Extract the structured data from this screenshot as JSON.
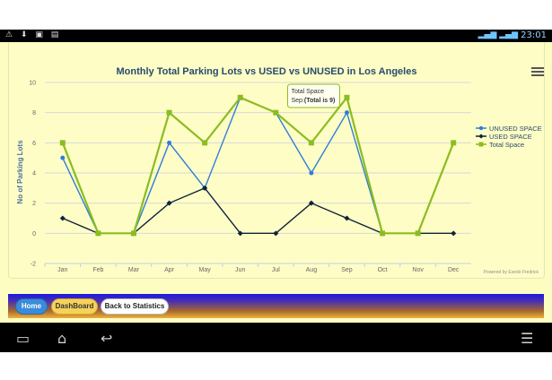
{
  "status_bar": {
    "left_icons": [
      "warning-icon",
      "download-icon",
      "image-icon",
      "message-icon"
    ],
    "time": "23:01"
  },
  "nav": {
    "home_label": "Home",
    "dashboard_label": "DashBoard",
    "back_label": "Back to Statistics"
  },
  "system_bar": {
    "icons": [
      "recent-apps-icon",
      "home-icon",
      "back-icon",
      "menu-icon"
    ]
  },
  "chart_data": {
    "type": "line",
    "title": "Monthly Total Parking Lots vs USED vs UNUSED in Los Angeles",
    "ylabel": "No of Parking Lots",
    "xlabel": "",
    "categories": [
      "Jan",
      "Feb",
      "Mar",
      "Apr",
      "May",
      "Jun",
      "Jul",
      "Aug",
      "Sep",
      "Oct",
      "Nov",
      "Dec"
    ],
    "ylim": [
      -2,
      10
    ],
    "yticks": [
      -2,
      0,
      2,
      4,
      6,
      8,
      10
    ],
    "grid": true,
    "legend_position": "right",
    "series": [
      {
        "name": "UNUSED SPACE",
        "color": "#2f7ed8",
        "marker": "circle",
        "values": [
          5,
          0,
          0,
          6,
          3,
          9,
          8,
          4,
          8,
          0,
          0,
          null
        ]
      },
      {
        "name": "USED SPACE",
        "color": "#0d233a",
        "marker": "diamond",
        "values": [
          1,
          0,
          0,
          2,
          3,
          0,
          0,
          2,
          1,
          0,
          0,
          0
        ]
      },
      {
        "name": "Total Space",
        "color": "#8bbc21",
        "marker": "square",
        "values": [
          6,
          0,
          0,
          8,
          6,
          9,
          8,
          6,
          9,
          0,
          0,
          6
        ]
      }
    ],
    "tooltip": {
      "title": "Total Space",
      "label": "Sep:",
      "value": "(Total is 9)",
      "category_index": 8
    },
    "credits": "Powered by Esedo Fredrick"
  }
}
